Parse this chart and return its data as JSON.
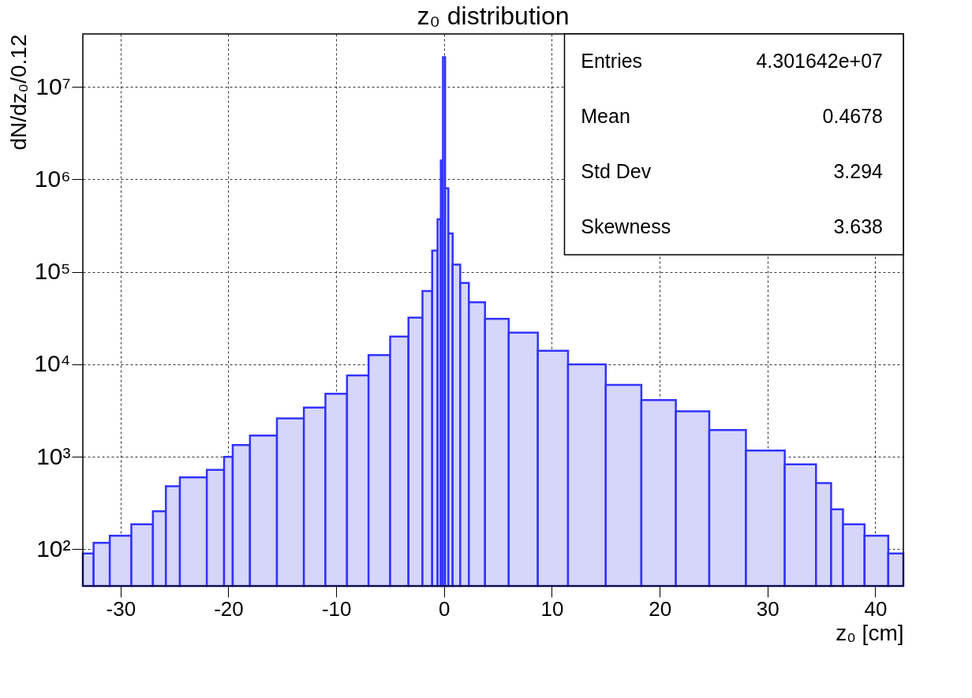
{
  "chart_data": {
    "type": "histogram",
    "title": "z₀ distribution",
    "xlabel": "z₀ [cm]",
    "ylabel": "dN/dz₀/0.12",
    "bins": [
      -33.5,
      -32.5,
      -31,
      -29,
      -27,
      -25.8,
      -24.5,
      -22,
      -20.4,
      -19.6,
      -18,
      -15.5,
      -13,
      -11,
      -9,
      -7,
      -5,
      -3.3,
      -2,
      -1.1,
      -0.6,
      -0.3,
      -0.1,
      0.1,
      0.4,
      0.8,
      1.5,
      2.3,
      3.8,
      6,
      8.7,
      11.5,
      15,
      18.3,
      21.5,
      24.6,
      28,
      31.6,
      34.5,
      35.9,
      37,
      39,
      41.2,
      42.6
    ],
    "values": [
      90,
      117,
      140,
      186,
      257,
      480,
      600,
      720,
      1000,
      1340,
      1700,
      2600,
      3400,
      4800,
      7600,
      12600,
      20000,
      32000,
      62000,
      170000,
      370000,
      1600000,
      21000000,
      800000,
      260000,
      120000,
      76000,
      47000,
      31000,
      22000,
      14000,
      10000,
      6000,
      4100,
      3100,
      1950,
      1170,
      830,
      520,
      270,
      186,
      140,
      90
    ],
    "color": "#3333ff",
    "xlim": [
      -33.5,
      42.6
    ],
    "xticks": [
      -30,
      -20,
      -10,
      0,
      10,
      20,
      30,
      40
    ],
    "ylim": [
      40,
      37500000
    ],
    "yticks": [
      {
        "value": 100,
        "label": "10²"
      },
      {
        "value": 1000,
        "label": "10³"
      },
      {
        "value": 10000,
        "label": "10⁴"
      },
      {
        "value": 100000,
        "label": "10⁵"
      },
      {
        "value": 1000000,
        "label": "10⁶"
      },
      {
        "value": 10000000,
        "label": "10⁷"
      }
    ],
    "log": "y",
    "grid": true,
    "annotations": [
      "Entries",
      "4.301642e+07",
      "Mean",
      "0.4678",
      "Std Dev",
      "3.294",
      "Skewness",
      "3.638"
    ]
  }
}
